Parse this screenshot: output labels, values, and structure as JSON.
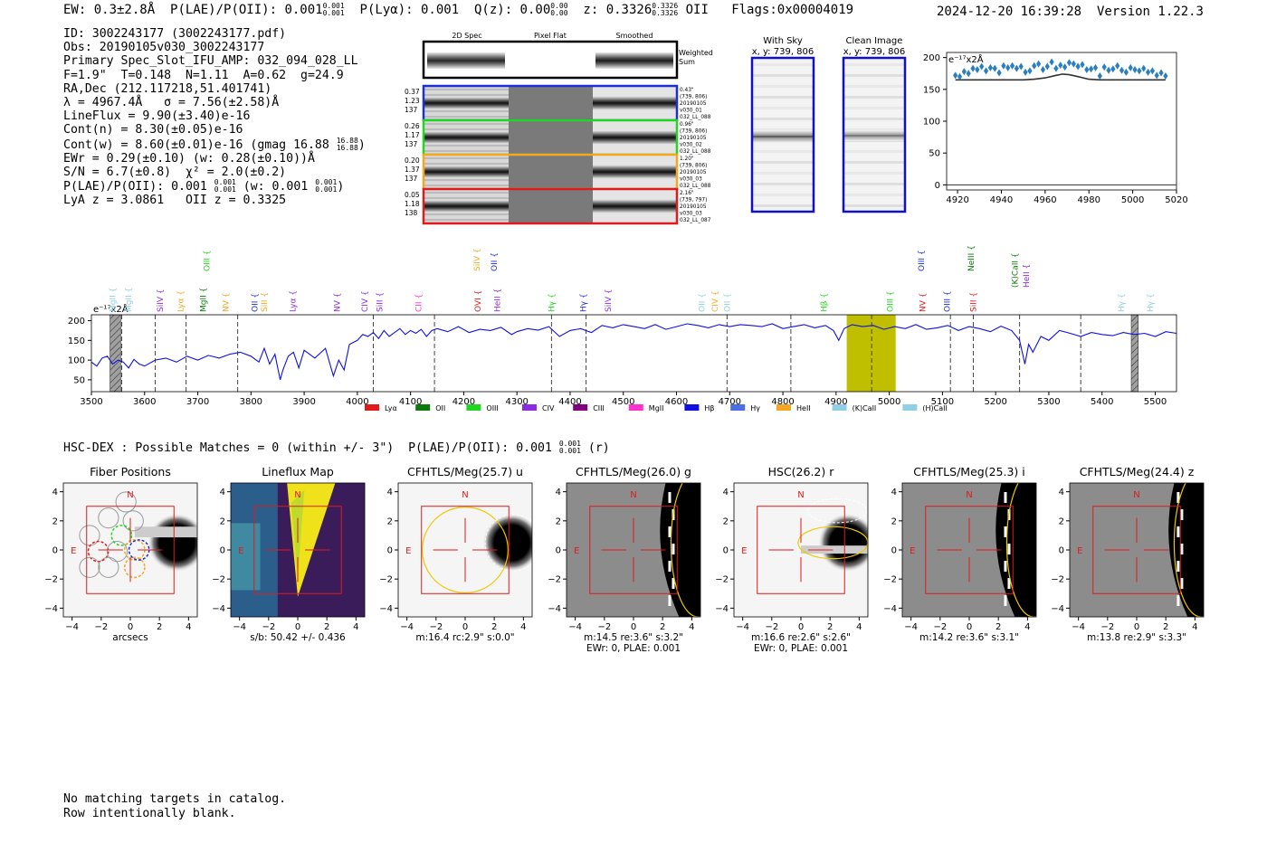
{
  "header": {
    "ew": "EW: 0.3±2.8Å",
    "plae_label": "P(LAE)/P(OII): 0.001",
    "plae_hi": "0.001",
    "plae_lo": "0.001",
    "plya": "P(Lyα): 0.001",
    "qz_label": "Q(z): 0.00",
    "qz_hi": "0.00",
    "qz_lo": "0.00",
    "z_label": "z: 0.3326",
    "z_hi": "0.3326",
    "z_lo": "0.3326",
    "z_line": "OII",
    "flags": "Flags:0x00004019",
    "timestamp": "2024-12-20 16:39:28",
    "version": "Version 1.22.3"
  },
  "info": {
    "id": "ID: 3002243177 (3002243177.pdf)",
    "obs": "Obs: 20190105v030_3002243177",
    "slot": "Primary Spec_Slot_IFU_AMP: 032_094_028_LL",
    "fit": "F=1.9\"  T=0.148  N=1.11  A=0.62  g=24.9",
    "radec": "RA,Dec (212.117218,51.401741)",
    "lambda": "λ = 4967.4Å   σ = 7.56(±2.58)Å",
    "lineflux": "LineFlux = 9.90(±3.40)e-16",
    "contn": "Cont(n) = 8.30(±0.05)e-16",
    "contw": "Cont(w) = 8.60(±0.01)e-16 (gmag 16.88",
    "gmag_hi": "16.88",
    "gmag_lo": "16.88",
    "ewr": "EWr = 0.29(±0.10) (w: 0.28(±0.10))Å",
    "sn": "S/N = 6.7(±0.8)  χ² = 2.0(±0.2)",
    "plae": "P(LAE)/P(OII): 0.001",
    "plae_hi": "0.001",
    "plae_lo": "0.001",
    "plae_w": "(w: 0.001",
    "plae_w_hi": "0.001",
    "plae_w_lo": "0.001",
    "lya_z": "LyA z = 3.0861   OII z = 0.3325"
  },
  "stamps": {
    "col_titles": [
      "2D Spec",
      "Pixel Flat",
      "Smoothed"
    ],
    "weighted": [
      "Weighted",
      "Sum"
    ],
    "rows": [
      {
        "left": [
          "0.37",
          "1.23",
          "137"
        ],
        "right": [
          "0.43\"",
          "(739, 806)",
          "20190105",
          "v030_01",
          "032_LL_088"
        ],
        "color": "#1f2fd8"
      },
      {
        "left": [
          "0.26",
          "1.17",
          "137"
        ],
        "right": [
          "0.96\"",
          "(739, 806)",
          "20190105",
          "v030_02",
          "032_LL_088"
        ],
        "color": "#22d622"
      },
      {
        "left": [
          "0.20",
          "1.37",
          "137"
        ],
        "right": [
          "1.20\"",
          "(739, 806)",
          "20190105",
          "v030_03",
          "032_LL_088"
        ],
        "color": "#f5a623"
      },
      {
        "left": [
          "0.05",
          "1.18",
          "138"
        ],
        "right": [
          "2.16\"",
          "(739, 797)",
          "20190105",
          "v030_03",
          "032_LL_087"
        ],
        "color": "#e01b1b"
      }
    ]
  },
  "sky": {
    "with_sky_title": "With Sky",
    "with_sky_xy": "x, y: 739, 806",
    "clean_title": "Clean Image",
    "clean_xy": "x, y: 739, 806"
  },
  "chart_data": [
    {
      "type": "scatter",
      "scale_label": "e⁻¹⁷x2Å",
      "xlim": [
        4915,
        5020
      ],
      "ylim": [
        -8,
        208
      ],
      "xticks": [
        4920,
        4940,
        4960,
        4980,
        5000,
        5020
      ],
      "yticks": [
        0,
        50,
        100,
        150,
        200
      ],
      "x": [
        4919,
        4921,
        4923,
        4925,
        4927,
        4929,
        4931,
        4933,
        4935,
        4937,
        4939,
        4941,
        4943,
        4945,
        4947,
        4949,
        4951,
        4953,
        4955,
        4957,
        4959,
        4961,
        4963,
        4965,
        4967,
        4969,
        4971,
        4973,
        4975,
        4977,
        4979,
        4981,
        4983,
        4985,
        4987,
        4989,
        4991,
        4993,
        4995,
        4997,
        4999,
        5001,
        5003,
        5005,
        5007,
        5009,
        5011,
        5013,
        5015
      ],
      "y": [
        172,
        170,
        178,
        175,
        183,
        181,
        186,
        179,
        184,
        183,
        176,
        187,
        184,
        187,
        183,
        186,
        177,
        179,
        187,
        190,
        181,
        186,
        193,
        183,
        188,
        185,
        192,
        190,
        186,
        189,
        181,
        182,
        184,
        171,
        185,
        180,
        182,
        187,
        180,
        177,
        184,
        181,
        179,
        183,
        177,
        179,
        172,
        176,
        171
      ],
      "fit_x": [
        4919,
        4930,
        4940,
        4950,
        4955,
        4960,
        4965,
        4968,
        4971,
        4975,
        4980,
        4985,
        4990,
        5000,
        5015
      ],
      "fit_y": [
        165,
        165,
        165,
        165,
        166,
        168,
        172,
        174,
        173,
        170,
        166,
        165,
        165,
        165,
        165
      ]
    },
    {
      "type": "line",
      "scale_label": "e⁻¹⁷x2Å",
      "xlim": [
        3500,
        5540
      ],
      "ylim": [
        20,
        215
      ],
      "xticks": [
        3500,
        3600,
        3700,
        3800,
        3900,
        4000,
        4100,
        4200,
        4300,
        4400,
        4500,
        4600,
        4700,
        4800,
        4900,
        5000,
        5100,
        5200,
        5300,
        5400,
        5500
      ],
      "yticks": [
        50,
        100,
        150,
        200
      ],
      "x": [
        3500,
        3510,
        3520,
        3530,
        3540,
        3550,
        3560,
        3570,
        3580,
        3590,
        3600,
        3620,
        3640,
        3660,
        3680,
        3700,
        3720,
        3740,
        3760,
        3780,
        3800,
        3815,
        3825,
        3835,
        3845,
        3855,
        3860,
        3870,
        3880,
        3890,
        3900,
        3920,
        3940,
        3955,
        3965,
        3975,
        3985,
        4000,
        4010,
        4020,
        4030,
        4040,
        4050,
        4060,
        4070,
        4080,
        4090,
        4100,
        4110,
        4120,
        4130,
        4140,
        4150,
        4170,
        4190,
        4210,
        4230,
        4250,
        4270,
        4290,
        4300,
        4320,
        4340,
        4360,
        4380,
        4400,
        4420,
        4440,
        4460,
        4480,
        4500,
        4520,
        4540,
        4560,
        4580,
        4600,
        4620,
        4640,
        4660,
        4680,
        4700,
        4720,
        4740,
        4760,
        4780,
        4800,
        4820,
        4840,
        4860,
        4880,
        4895,
        4905,
        4915,
        4930,
        4950,
        4970,
        4990,
        5010,
        5030,
        5050,
        5070,
        5090,
        5110,
        5130,
        5150,
        5170,
        5190,
        5210,
        5230,
        5245,
        5255,
        5262,
        5270,
        5285,
        5300,
        5320,
        5340,
        5360,
        5380,
        5400,
        5420,
        5440,
        5460,
        5480,
        5500,
        5520,
        5540
      ],
      "y": [
        95,
        85,
        105,
        110,
        90,
        100,
        95,
        80,
        102,
        90,
        85,
        100,
        105,
        95,
        110,
        100,
        112,
        105,
        115,
        120,
        110,
        95,
        130,
        90,
        115,
        50,
        75,
        110,
        120,
        80,
        125,
        105,
        130,
        60,
        100,
        75,
        140,
        150,
        165,
        160,
        170,
        155,
        175,
        160,
        170,
        180,
        165,
        175,
        168,
        178,
        160,
        175,
        180,
        172,
        185,
        170,
        178,
        175,
        183,
        165,
        172,
        180,
        176,
        185,
        160,
        175,
        180,
        170,
        188,
        182,
        190,
        185,
        180,
        190,
        178,
        185,
        192,
        188,
        182,
        190,
        185,
        190,
        188,
        185,
        192,
        180,
        185,
        190,
        182,
        188,
        175,
        150,
        180,
        190,
        185,
        188,
        178,
        185,
        180,
        190,
        178,
        182,
        188,
        175,
        185,
        180,
        172,
        186,
        175,
        150,
        90,
        140,
        120,
        160,
        150,
        175,
        168,
        160,
        170,
        165,
        162,
        170,
        165,
        168,
        160,
        172,
        168
      ],
      "highlight_range": [
        4920,
        5012
      ],
      "masked": [
        [
          3535,
          3555
        ],
        [
          5455,
          5468
        ]
      ],
      "vlines": [
        3557,
        3620,
        3678,
        3775,
        4030,
        4145,
        4365,
        4430,
        4695,
        4815,
        4967,
        5115,
        5158,
        5245,
        5360
      ],
      "lines": [
        {
          "name": "MgII",
          "color": "#8fd0e6",
          "x": 3545,
          "row": 2
        },
        {
          "name": "MgII",
          "color": "#8fd0e6",
          "x": 3575,
          "row": 2
        },
        {
          "name": "SiIV",
          "color": "#8c2be2",
          "x": 3634,
          "row": 2
        },
        {
          "name": "Lyα",
          "color": "#f5a623",
          "x": 3673,
          "row": 2
        },
        {
          "name": "MgII",
          "color": "#0c7b0c",
          "x": 3715,
          "row": 2
        },
        {
          "name": "OIII",
          "color": "#22d622",
          "x": 3722,
          "row": 0
        },
        {
          "name": "NV",
          "color": "#f5a623",
          "x": 3758,
          "row": 2
        },
        {
          "name": "OII",
          "color": "#1f2fd8",
          "x": 3812,
          "row": 2
        },
        {
          "name": "SiII",
          "color": "#f5a623",
          "x": 3830,
          "row": 2
        },
        {
          "name": "Lyα",
          "color": "#8c2be2",
          "x": 3884,
          "row": 2
        },
        {
          "name": "NV",
          "color": "#8c2be2",
          "x": 3967,
          "row": 2
        },
        {
          "name": "CIV",
          "color": "#8c2be2",
          "x": 4019,
          "row": 2
        },
        {
          "name": "SiII",
          "color": "#8c2be2",
          "x": 4047,
          "row": 2
        },
        {
          "name": "CII",
          "color": "#ff33cc",
          "x": 4120,
          "row": 2
        },
        {
          "name": "SiIV",
          "color": "#f5a623",
          "x": 4230,
          "row": 0
        },
        {
          "name": "OII",
          "color": "#1f2fd8",
          "x": 4262,
          "row": 0
        },
        {
          "name": "OVI",
          "color": "#e01b1b",
          "x": 4232,
          "row": 2
        },
        {
          "name": "HeII",
          "color": "#8c2be2",
          "x": 4268,
          "row": 2
        },
        {
          "name": "Hγ",
          "color": "#22d622",
          "x": 4370,
          "row": 2
        },
        {
          "name": "Hγ",
          "color": "#1f2fd8",
          "x": 4430,
          "row": 2
        },
        {
          "name": "SiIV",
          "color": "#8c2be2",
          "x": 4477,
          "row": 2
        },
        {
          "name": "OII",
          "color": "#8fd0e6",
          "x": 4653,
          "row": 2
        },
        {
          "name": "CIV",
          "color": "#f5a623",
          "x": 4677,
          "row": 2
        },
        {
          "name": "OII",
          "color": "#8fd0e6",
          "x": 4700,
          "row": 2
        },
        {
          "name": "Hβ",
          "color": "#22d622",
          "x": 4882,
          "row": 2
        },
        {
          "name": "OIII",
          "color": "#22d622",
          "x": 5007,
          "row": 2
        },
        {
          "name": "OIII",
          "color": "#1f2fd8",
          "x": 5065,
          "row": 0
        },
        {
          "name": "NV",
          "color": "#e01b1b",
          "x": 5068,
          "row": 2
        },
        {
          "name": "OIII",
          "color": "#1f2fd8",
          "x": 5114,
          "row": 2
        },
        {
          "name": "NeIII",
          "color": "#0c7b0c",
          "x": 5159,
          "row": 0
        },
        {
          "name": "SiII",
          "color": "#e01b1b",
          "x": 5163,
          "row": 2
        },
        {
          "name": "(K)CaII",
          "color": "#0c7b0c",
          "x": 5241,
          "row": 1
        },
        {
          "name": "HeII",
          "color": "#8c2be2",
          "x": 5263,
          "row": 1
        },
        {
          "name": "Hγ",
          "color": "#8fd0e6",
          "x": 5441,
          "row": 2
        },
        {
          "name": "Hγ",
          "color": "#8fd0e6",
          "x": 5496,
          "row": 2
        }
      ],
      "legend": [
        {
          "name": "Lyα",
          "color": "#e01b1b"
        },
        {
          "name": "OII",
          "color": "#0c7b0c"
        },
        {
          "name": "OIII",
          "color": "#22d622"
        },
        {
          "name": "CIV",
          "color": "#8c2be2"
        },
        {
          "name": "CIII",
          "color": "#800080"
        },
        {
          "name": "MgII",
          "color": "#ff33cc"
        },
        {
          "name": "Hβ",
          "color": "#1010e0"
        },
        {
          "name": "Hγ",
          "color": "#4a6fe8"
        },
        {
          "name": "HeII",
          "color": "#f5a623"
        },
        {
          "name": "(K)CaII",
          "color": "#8fd0e6"
        },
        {
          "name": "(H)CaII",
          "color": "#8fd0e6"
        }
      ]
    }
  ],
  "hsc_line": {
    "text": "HSC-DEX : Possible Matches = 0 (within +/- 3\")  P(LAE)/P(OII): 0.001",
    "hi": "0.001",
    "lo": "0.001",
    "suffix": "(r)"
  },
  "cutouts": {
    "ticks": [
      "−4",
      "−2",
      "0",
      "2",
      "4"
    ],
    "north": "N",
    "east": "E",
    "panels": [
      {
        "title": "Fiber Positions",
        "cap": [
          "arcsecs"
        ],
        "kind": "fiber"
      },
      {
        "title": "Lineflux Map",
        "cap": [
          "s/b: 50.42 +/- 0.436"
        ],
        "kind": "lineflux"
      },
      {
        "title": "CFHTLS/Meg(25.7) u",
        "cap": [
          "m:16.4 rc:2.9\"  s:0.0\""
        ],
        "kind": "u"
      },
      {
        "title": "CFHTLS/Meg(26.0) g",
        "cap": [
          "m:14.5  re:3.6\"  s:3.2\"",
          "EWr: 0, PLAE: 0.001"
        ],
        "kind": "g"
      },
      {
        "title": "HSC(26.2) r",
        "cap": [
          "m:16.6  re:2.6\"  s:2.6\"",
          "EWr: 0, PLAE: 0.001"
        ],
        "kind": "r"
      },
      {
        "title": "CFHTLS/Meg(25.3) i",
        "cap": [
          "m:14.2  re:3.6\"  s:3.1\""
        ],
        "kind": "i"
      },
      {
        "title": "CFHTLS/Meg(24.4) z",
        "cap": [
          "m:13.8  re:2.9\"  s:3.3\""
        ],
        "kind": "z"
      }
    ]
  },
  "footer": {
    "line1": "No matching targets in catalog.",
    "line2": "Row intentionally blank."
  }
}
